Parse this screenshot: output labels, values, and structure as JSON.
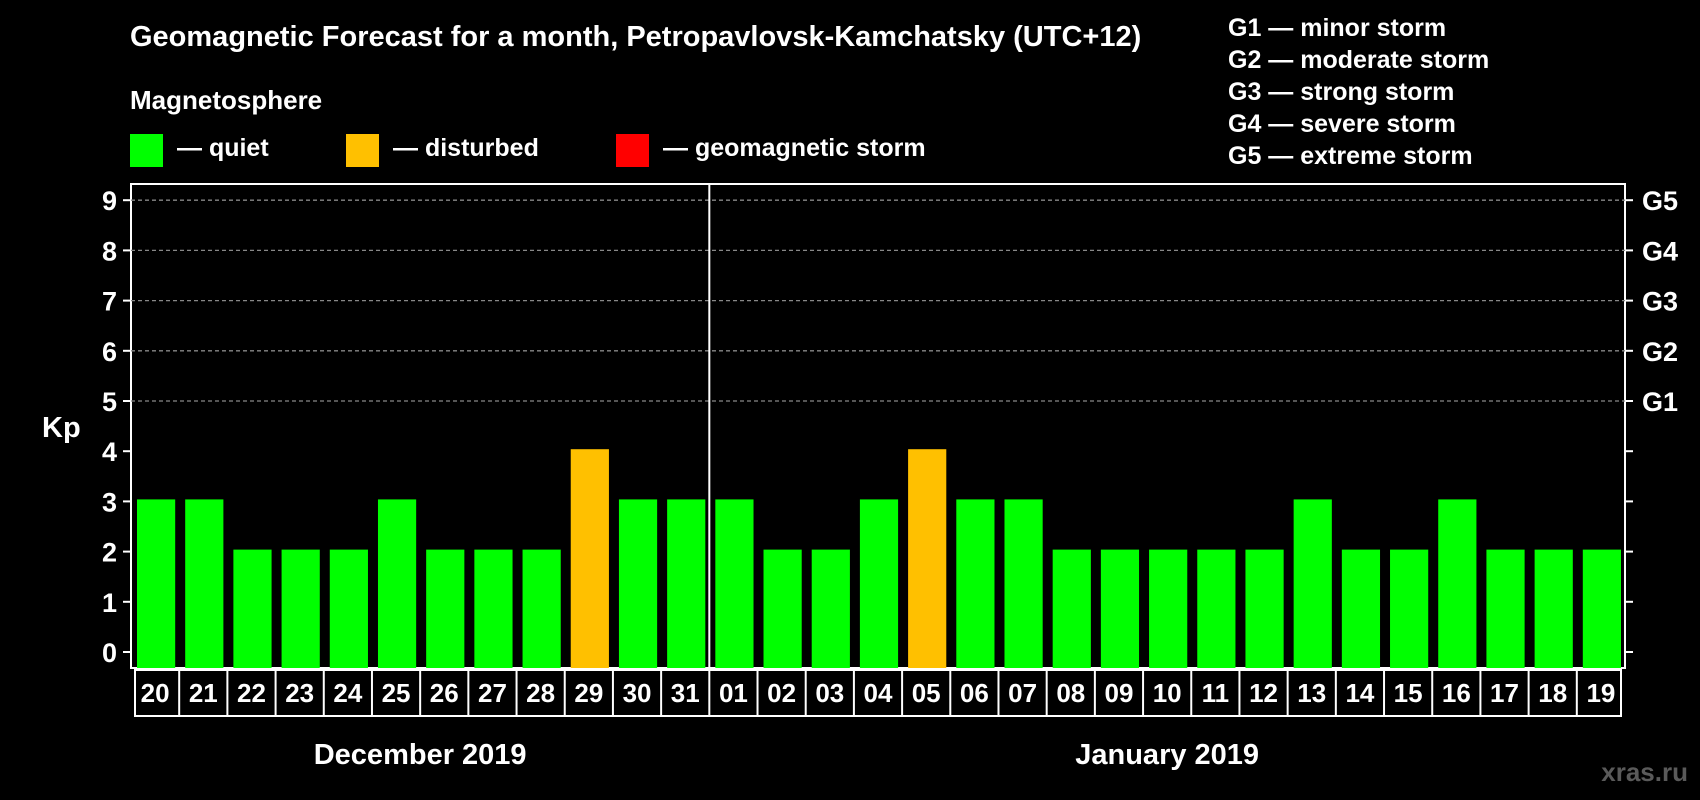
{
  "title": "Geomagnetic Forecast for a month, Petropavlovsk-Kamchatsky (UTC+12)",
  "subtitle": "Magnetosphere",
  "legend": [
    {
      "label": "— quiet",
      "color": "#00ff00"
    },
    {
      "label": "— disturbed",
      "color": "#ffc000"
    },
    {
      "label": "— geomagnetic storm",
      "color": "#ff0000"
    }
  ],
  "g_scale": [
    "G1 — minor storm",
    "G2 — moderate storm",
    "G3 — strong storm",
    "G4 — severe storm",
    "G5 — extreme storm"
  ],
  "watermark": "xras.ru",
  "chart_data": {
    "type": "bar",
    "ylabel": "Kp",
    "ylim": [
      0,
      9
    ],
    "yticks": [
      0,
      1,
      2,
      3,
      4,
      5,
      6,
      7,
      8,
      9
    ],
    "right_axis_labels": [
      {
        "kp": 5,
        "label": "G1"
      },
      {
        "kp": 6,
        "label": "G2"
      },
      {
        "kp": 7,
        "label": "G3"
      },
      {
        "kp": 8,
        "label": "G4"
      },
      {
        "kp": 9,
        "label": "G5"
      }
    ],
    "grid": "horizontal dashed lines at 5–9",
    "categories": [
      "20",
      "21",
      "22",
      "23",
      "24",
      "25",
      "26",
      "27",
      "28",
      "29",
      "30",
      "31",
      "01",
      "02",
      "03",
      "04",
      "05",
      "06",
      "07",
      "08",
      "09",
      "10",
      "11",
      "12",
      "13",
      "14",
      "15",
      "16",
      "17",
      "18",
      "19"
    ],
    "values": [
      3,
      3,
      2,
      2,
      2,
      3,
      2,
      2,
      2,
      4,
      3,
      3,
      3,
      2,
      2,
      3,
      4,
      3,
      3,
      2,
      2,
      2,
      2,
      2,
      3,
      2,
      2,
      3,
      2,
      2,
      2
    ],
    "months": [
      {
        "label": "December 2019",
        "count": 12
      },
      {
        "label": "January 2019",
        "count": 19
      }
    ],
    "colors": {
      "quiet": "#00ff00",
      "disturbed": "#ffc000",
      "storm": "#ff0000"
    }
  }
}
